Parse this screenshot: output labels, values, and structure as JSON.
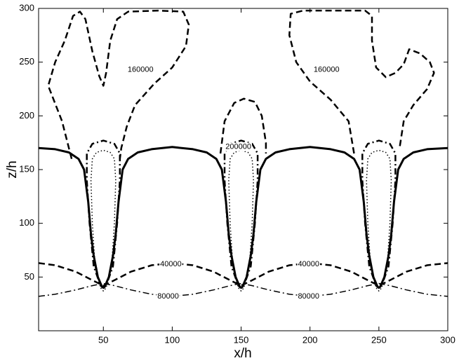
{
  "chart_data": {
    "type": "contour",
    "xlabel": "x/h",
    "ylabel": "z/h",
    "xlim": [
      3,
      300
    ],
    "ylim": [
      0,
      300
    ],
    "xticks": [
      50,
      100,
      150,
      200,
      250,
      300
    ],
    "yticks": [
      50,
      100,
      150,
      200,
      250,
      300
    ],
    "series": [
      {
        "color": "#000000",
        "style": "solid",
        "width": 3,
        "x": [
          3,
          15,
          25,
          32,
          36,
          39,
          41,
          43,
          46,
          49,
          50,
          51,
          54,
          57,
          59,
          61,
          64,
          68,
          75,
          85,
          100,
          115,
          125,
          132,
          136,
          139,
          141,
          143,
          146,
          149,
          150,
          151,
          154,
          157,
          159,
          161,
          164,
          168,
          175,
          185,
          200,
          215,
          225,
          232,
          236,
          239,
          241,
          243,
          246,
          249,
          250,
          251,
          254,
          257,
          259,
          261,
          264,
          268,
          275,
          285,
          300
        ],
        "values": [
          170,
          169,
          166,
          160,
          150,
          120,
          90,
          70,
          50,
          41,
          40,
          41,
          50,
          70,
          90,
          120,
          150,
          160,
          166,
          169,
          171,
          169,
          166,
          160,
          150,
          120,
          90,
          70,
          50,
          41,
          40,
          41,
          50,
          70,
          90,
          120,
          150,
          160,
          166,
          169,
          171,
          169,
          166,
          160,
          150,
          120,
          90,
          70,
          50,
          41,
          40,
          41,
          50,
          70,
          90,
          120,
          150,
          160,
          166,
          169,
          170
        ]
      },
      {
        "color": "#000000",
        "style": "dashdot",
        "width": 2.5,
        "x": [
          43,
          40,
          38,
          38,
          42,
          50,
          58,
          62,
          62,
          60,
          57,
          52,
          50,
          48,
          43,
          null,
          143,
          140,
          138,
          138,
          142,
          150,
          158,
          162,
          162,
          160,
          157,
          152,
          150,
          148,
          143,
          null,
          243,
          240,
          238,
          238,
          242,
          250,
          258,
          262,
          262,
          260,
          257,
          252,
          250,
          248,
          243
        ],
        "values": [
          60,
          100,
          140,
          165,
          174,
          177,
          174,
          165,
          140,
          100,
          60,
          42,
          40,
          42,
          60,
          null,
          60,
          100,
          140,
          165,
          174,
          177,
          174,
          165,
          140,
          100,
          60,
          42,
          40,
          42,
          60,
          null,
          60,
          100,
          140,
          165,
          174,
          177,
          174,
          165,
          140,
          100,
          60,
          42,
          40,
          42,
          60
        ]
      },
      {
        "color": "#000000",
        "style": "dotted",
        "width": 1.5,
        "x": [
          44,
          42,
          41,
          42,
          45,
          50,
          55,
          58,
          59,
          58,
          56,
          52,
          50,
          48,
          44,
          null,
          144,
          142,
          141,
          142,
          145,
          150,
          155,
          158,
          159,
          158,
          156,
          152,
          150,
          148,
          144,
          null,
          244,
          242,
          241,
          242,
          245,
          250,
          255,
          258,
          259,
          258,
          256,
          252,
          250,
          248,
          244
        ],
        "values": [
          60,
          100,
          140,
          160,
          166,
          168,
          166,
          160,
          140,
          100,
          60,
          40,
          37,
          40,
          60,
          null,
          60,
          100,
          140,
          160,
          166,
          168,
          166,
          160,
          140,
          100,
          60,
          40,
          37,
          40,
          60,
          null,
          60,
          100,
          140,
          160,
          166,
          168,
          166,
          160,
          140,
          100,
          60,
          40,
          37,
          40,
          60
        ]
      },
      {
        "color": "#000000",
        "style": "dashed",
        "width": 2.5,
        "x": [
          27,
          20,
          10,
          15,
          22,
          28,
          33,
          37,
          42,
          47,
          50,
          52,
          55,
          60,
          68,
          90,
          108,
          112,
          110,
          100,
          87,
          73,
          67,
          63,
          62,
          null,
          135,
          138,
          145,
          152,
          160,
          165,
          168,
          168,
          null,
          232,
          228,
          215,
          200,
          190,
          185,
          186,
          195,
          240,
          245,
          245,
          248,
          255,
          262,
          268,
          272,
          280,
          287,
          290,
          285,
          275,
          268,
          265
        ],
        "values": [
          160,
          195,
          228,
          250,
          270,
          293,
          297,
          290,
          260,
          237,
          228,
          240,
          270,
          290,
          297,
          298,
          297,
          285,
          265,
          245,
          230,
          210,
          190,
          170,
          160,
          null,
          165,
          195,
          212,
          216,
          213,
          200,
          175,
          165,
          null,
          165,
          195,
          215,
          232,
          250,
          275,
          295,
          298,
          298,
          293,
          270,
          245,
          236,
          240,
          248,
          262,
          258,
          250,
          240,
          225,
          210,
          195,
          170
        ]
      },
      {
        "color": "#000000",
        "style": "dashed",
        "width": 2.5,
        "x": [
          3,
          15,
          30,
          42,
          50,
          58,
          70,
          85,
          100,
          115,
          130,
          142,
          150,
          158,
          170,
          185,
          200,
          215,
          230,
          242,
          250,
          258,
          270,
          285,
          300
        ],
        "values": [
          63,
          61,
          55,
          47,
          42,
          47,
          55,
          61,
          63,
          61,
          55,
          47,
          42,
          47,
          55,
          61,
          63,
          61,
          55,
          47,
          42,
          47,
          55,
          61,
          63
        ]
      },
      {
        "color": "#000000",
        "style": "dashdot",
        "width": 1.5,
        "x": [
          3,
          15,
          30,
          42,
          50,
          58,
          70,
          85,
          100,
          115,
          130,
          142,
          150,
          158,
          170,
          185,
          200,
          215,
          230,
          242,
          250,
          258,
          270,
          285,
          300
        ],
        "values": [
          32,
          34,
          38,
          42,
          44,
          42,
          38,
          34,
          32,
          34,
          38,
          42,
          44,
          42,
          38,
          34,
          32,
          34,
          38,
          42,
          44,
          42,
          38,
          34,
          32
        ]
      }
    ],
    "annotations": [
      {
        "text": "160000",
        "x": 77,
        "y": 243
      },
      {
        "text": "160000",
        "x": 212,
        "y": 243
      },
      {
        "text": "200000",
        "x": 148,
        "y": 171
      },
      {
        "text": "40000",
        "x": 99,
        "y": 62
      },
      {
        "text": "40000",
        "x": 199,
        "y": 62
      },
      {
        "text": "80000",
        "x": 97,
        "y": 32
      },
      {
        "text": "80000",
        "x": 199,
        "y": 32
      }
    ]
  }
}
